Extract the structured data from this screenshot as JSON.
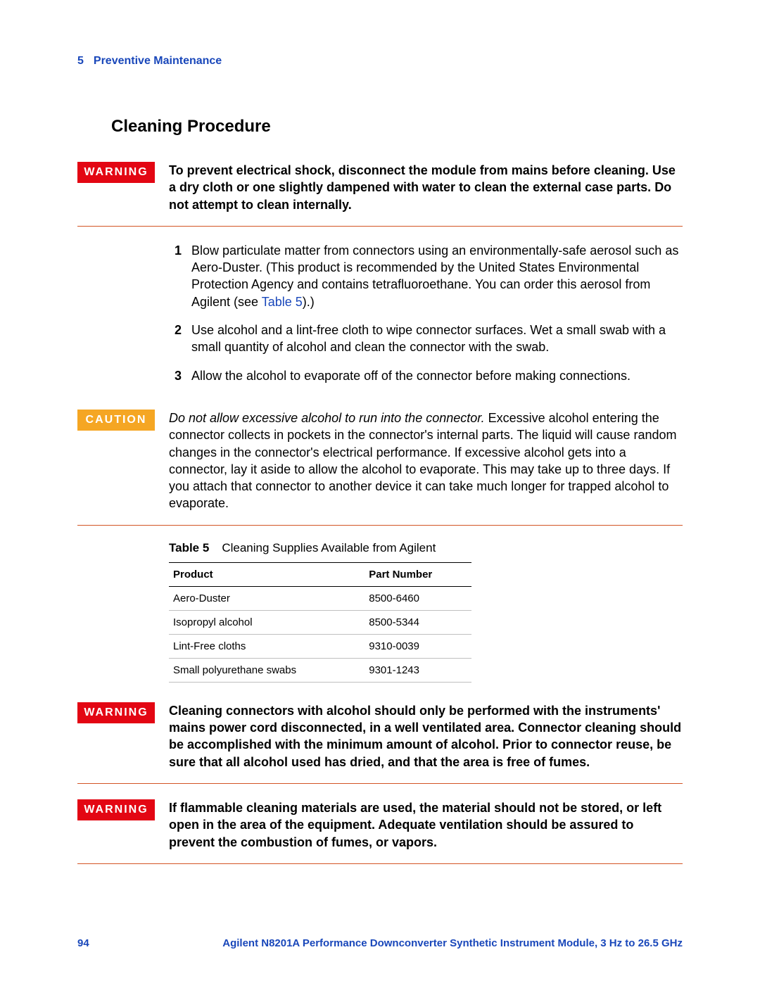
{
  "header": {
    "chapter_number": "5",
    "chapter_title": "Preventive Maintenance"
  },
  "section_title": "Cleaning Procedure",
  "warning1": {
    "label": "WARNING",
    "text": "To prevent electrical shock, disconnect the module from mains before cleaning. Use a dry cloth or one slightly dampened with water to clean the external case parts.  Do not attempt to clean internally."
  },
  "steps": [
    {
      "num": "1",
      "text_a": "Blow particulate matter from connectors using an environmentally-safe aerosol such as Aero-Duster. (This product is recommended by the United States Environmental Protection Agency and contains tetrafluoroethane. You can order this aerosol from Agilent (see ",
      "link": "Table 5",
      "text_b": ").)"
    },
    {
      "num": "2",
      "text_a": "Use alcohol and a lint-free cloth to wipe connector surfaces. Wet a small swab with a small quantity of alcohol and clean the connector with the swab.",
      "link": "",
      "text_b": ""
    },
    {
      "num": "3",
      "text_a": "Allow the alcohol to evaporate off of the connector before making connections.",
      "link": "",
      "text_b": ""
    }
  ],
  "caution": {
    "label": "CAUTION",
    "lead": "Do not allow excessive alcohol to run into the connector.",
    "rest": " Excessive alcohol entering the connector collects in pockets in the connector's internal parts. The liquid will cause random changes in the connector's electrical performance. If excessive alcohol gets into a connector, lay it aside to allow the alcohol to evaporate. This may take up to three days. If you attach that connector to another device it can take much longer for trapped alcohol to evaporate."
  },
  "table": {
    "label": "Table 5",
    "caption": "Cleaning Supplies Available from Agilent",
    "columns": [
      "Product",
      "Part Number"
    ],
    "rows": [
      [
        "Aero-Duster",
        "8500-6460"
      ],
      [
        "Isopropyl alcohol",
        "8500-5344"
      ],
      [
        "Lint-Free cloths",
        "9310-0039"
      ],
      [
        "Small polyurethane swabs",
        "9301-1243"
      ]
    ],
    "col_widths": [
      "58%",
      "42%"
    ]
  },
  "warning2": {
    "label": "WARNING",
    "text": "Cleaning connectors with alcohol should only be performed with the instruments' mains power cord disconnected, in a well ventilated area. Connector cleaning should be accomplished with the minimum amount of alcohol. Prior to connector reuse, be sure that all alcohol used has dried, and that the area is free of fumes."
  },
  "warning3": {
    "label": "WARNING",
    "text": "If flammable cleaning materials are used, the material should not be stored, or left open in the area of the equipment. Adequate ventilation should be assured to prevent the combustion of fumes, or vapors."
  },
  "footer": {
    "page": "94",
    "doc_title": "Agilent N8201A Performance Downconverter Synthetic Instrument Module, 3 Hz to 26.5 GHz"
  },
  "colors": {
    "link_blue": "#1947ba",
    "warning_red": "#e30613",
    "caution_orange": "#f5a623",
    "rule_orange": "#d35424"
  }
}
